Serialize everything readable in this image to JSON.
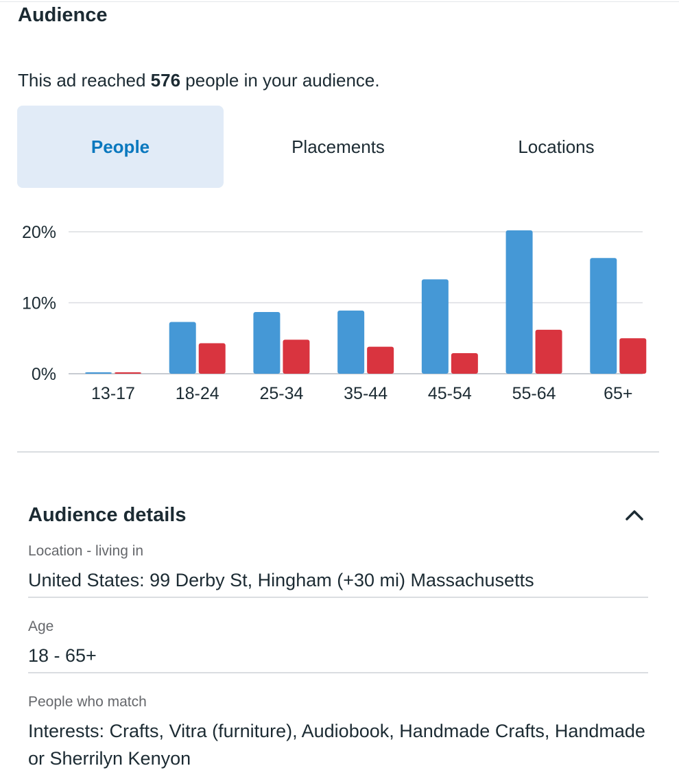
{
  "audience": {
    "title": "Audience",
    "reach_prefix": "This ad reached ",
    "reach_count": "576",
    "reach_suffix": " people in your audience."
  },
  "tabs": [
    {
      "label": "People",
      "active": true
    },
    {
      "label": "Placements",
      "active": false
    },
    {
      "label": "Locations",
      "active": false
    }
  ],
  "colors": {
    "series_a": "#4598d6",
    "series_b": "#d9343f",
    "accent": "#0a78be"
  },
  "chart_data": {
    "type": "bar",
    "categories": [
      "13-17",
      "18-24",
      "25-34",
      "35-44",
      "45-54",
      "55-64",
      "65+"
    ],
    "series": [
      {
        "values": [
          0.2,
          7.3,
          8.7,
          8.9,
          13.3,
          20.2,
          16.3
        ]
      },
      {
        "values": [
          0.2,
          4.3,
          4.8,
          3.8,
          2.9,
          6.2,
          5.0
        ]
      }
    ],
    "yticks": [
      "0%",
      "10%",
      "20%"
    ],
    "ytick_values": [
      0,
      10,
      20
    ],
    "ylim": [
      0,
      20
    ],
    "grid": true
  },
  "details": {
    "title": "Audience details",
    "fields": [
      {
        "label": "Location - living in",
        "value": "United States: 99 Derby St, Hingham (+30 mi) Massachusetts"
      },
      {
        "label": "Age",
        "value": "18 - 65+"
      },
      {
        "label": "People who match",
        "value": "Interests: Crafts, Vitra (furniture), Audiobook, Handmade Crafts, Handmade or Sherrilyn Kenyon"
      }
    ]
  }
}
